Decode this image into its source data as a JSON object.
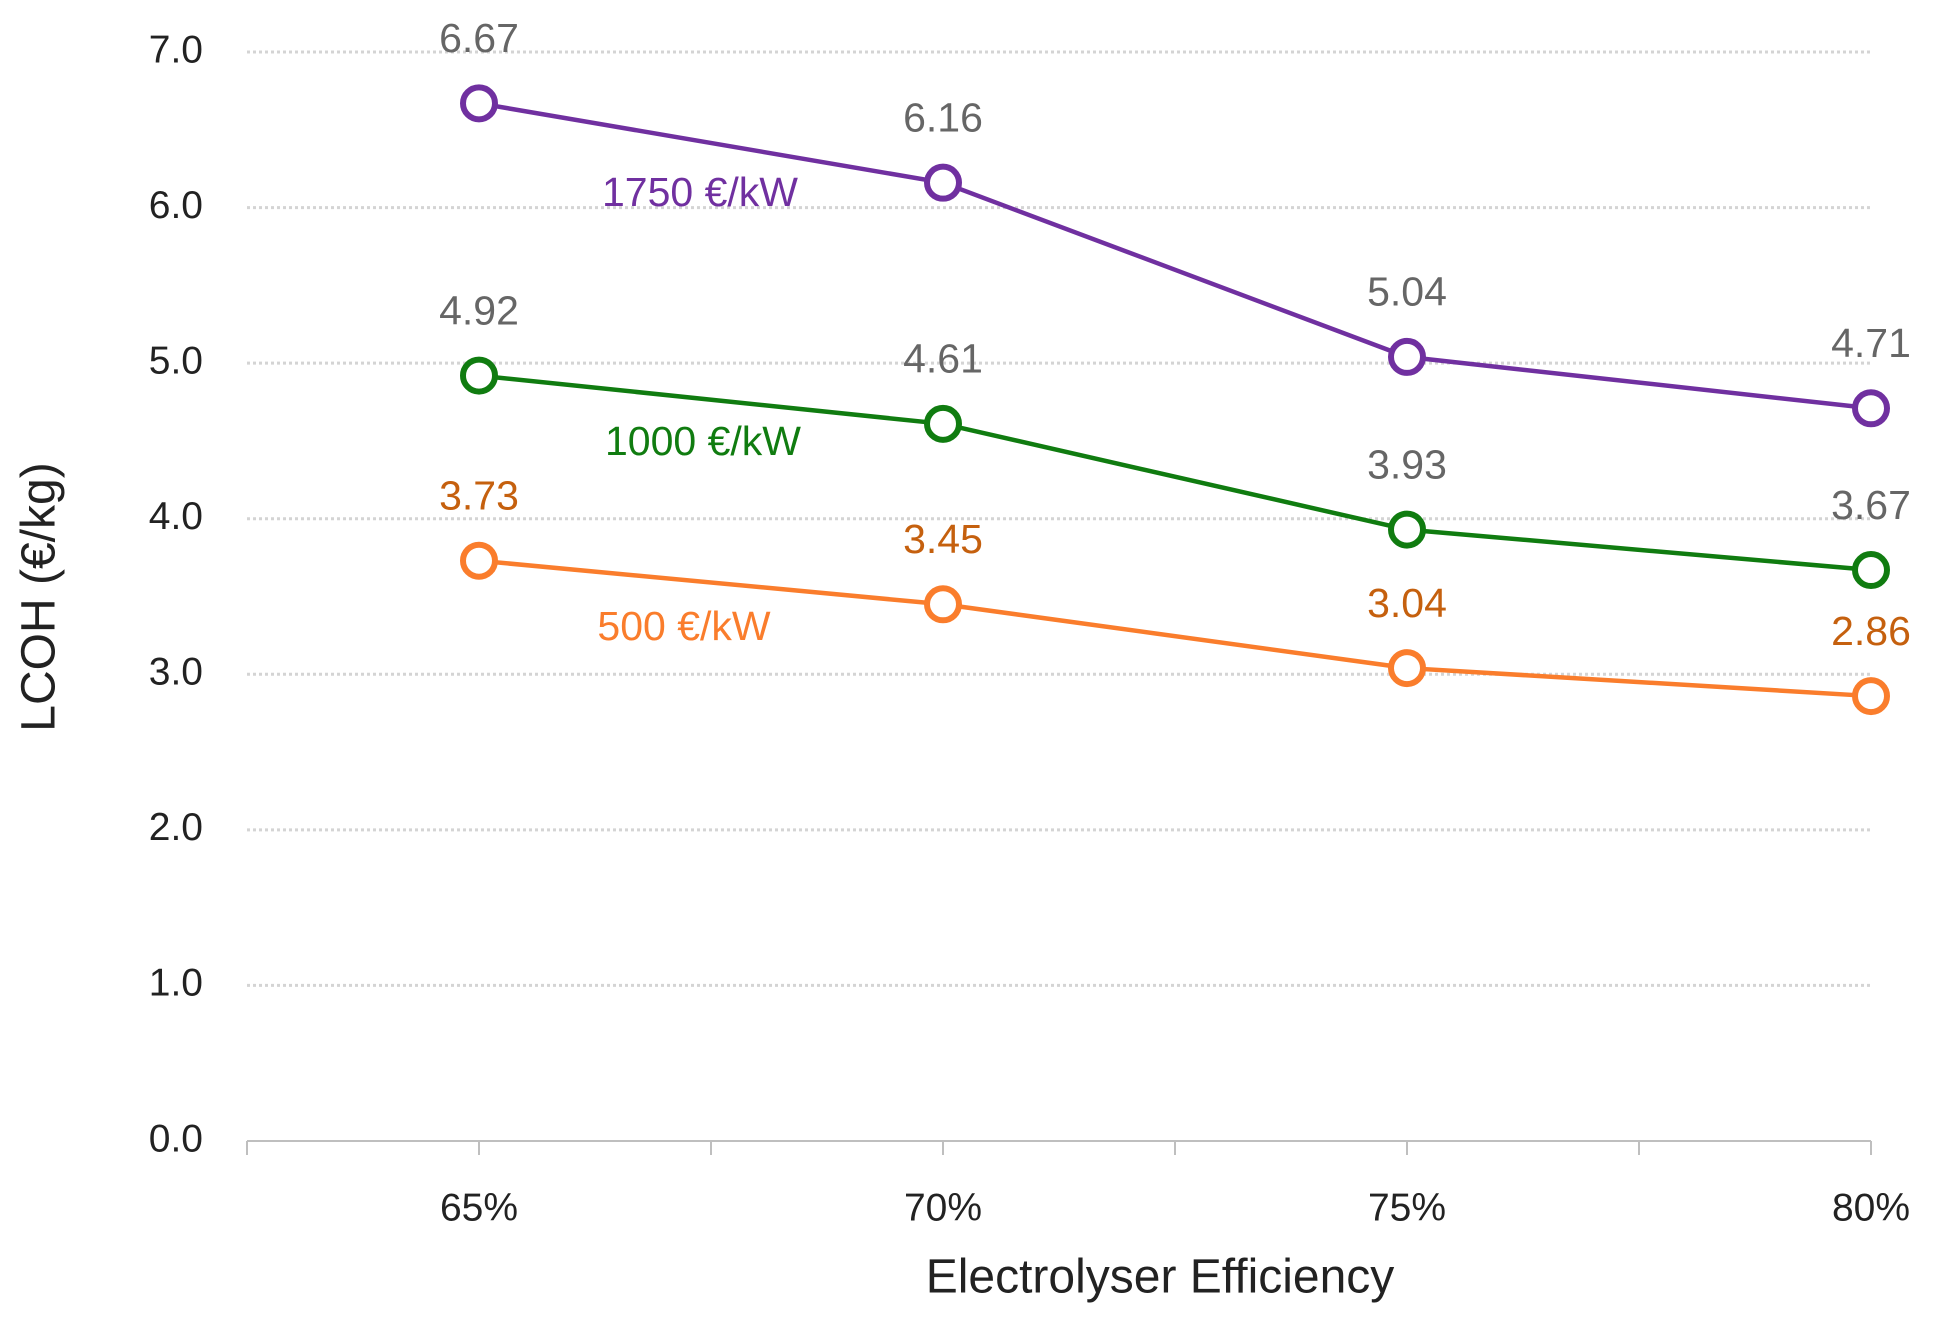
{
  "chart_data": {
    "type": "line",
    "x_label": "Electrolyser Efficiency",
    "y_label": "LCOH (€/kg)",
    "categories": [
      "65%",
      "70%",
      "75%",
      "80%"
    ],
    "series": [
      {
        "name": "1750 €/kW",
        "color": "#7030a0",
        "label_color": "#666666",
        "values": [
          6.67,
          6.16,
          5.04,
          4.71
        ]
      },
      {
        "name": "1000 €/kW",
        "color": "#107c10",
        "label_color": "#666666",
        "values": [
          4.92,
          4.61,
          3.93,
          3.67
        ]
      },
      {
        "name": "500 €/kW",
        "color": "#fa7d2c",
        "label_color": "#c5600e",
        "values": [
          3.73,
          3.45,
          3.04,
          2.86
        ]
      }
    ],
    "ylim": [
      0,
      7
    ],
    "yticks": [
      {
        "value": 0,
        "label": "0.0"
      },
      {
        "value": 1,
        "label": "1.0"
      },
      {
        "value": 2,
        "label": "2.0"
      },
      {
        "value": 3,
        "label": "3.0"
      },
      {
        "value": 4,
        "label": "4.0"
      },
      {
        "value": 5,
        "label": "5.0"
      },
      {
        "value": 6,
        "label": "6.0"
      },
      {
        "value": 7,
        "label": "7.0"
      }
    ],
    "grid": true
  }
}
